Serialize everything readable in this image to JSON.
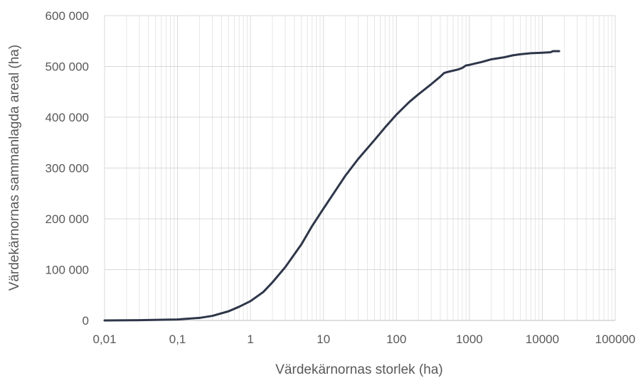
{
  "chart_data": {
    "type": "line",
    "title": "",
    "xlabel": "Värdekärnornas storlek (ha)",
    "ylabel": "Värdekärnornas sammanlagda areal (ha)",
    "x_scale": "log",
    "xlim": [
      0.01,
      100000
    ],
    "ylim": [
      0,
      600000
    ],
    "x_ticks": [
      0.01,
      0.1,
      1,
      10,
      100,
      1000,
      10000,
      100000
    ],
    "x_tick_labels": [
      "0,01",
      "0,1",
      "1",
      "10",
      "100",
      "1000",
      "10000",
      "100000"
    ],
    "y_ticks": [
      0,
      100000,
      200000,
      300000,
      400000,
      500000,
      600000
    ],
    "y_tick_labels": [
      "0",
      "100 000",
      "200 000",
      "300 000",
      "400 000",
      "500 000",
      "600 000"
    ],
    "grid": "horizontal major, vertical major and minor",
    "line_color": "#2e3649",
    "series": [
      {
        "x": [
          0.01,
          0.03,
          0.1,
          0.2,
          0.3,
          0.5,
          0.7,
          1,
          1.5,
          2,
          3,
          5,
          7,
          10,
          15,
          20,
          30,
          50,
          70,
          100,
          150,
          200,
          300,
          400,
          450,
          500,
          700,
          800,
          900,
          1000,
          1500,
          2000,
          3000,
          4000,
          5000,
          7000,
          10000,
          13000,
          14000,
          15000,
          17000
        ],
        "y": [
          0,
          500,
          2000,
          5000,
          9000,
          18000,
          27000,
          38000,
          56000,
          75000,
          105000,
          150000,
          186000,
          220000,
          258000,
          285000,
          318000,
          355000,
          380000,
          405000,
          430000,
          445000,
          465000,
          480000,
          487000,
          489000,
          494000,
          497000,
          502000,
          503000,
          509000,
          514000,
          518000,
          522000,
          524000,
          526000,
          527000,
          528000,
          530000,
          530000,
          530000
        ]
      }
    ]
  }
}
